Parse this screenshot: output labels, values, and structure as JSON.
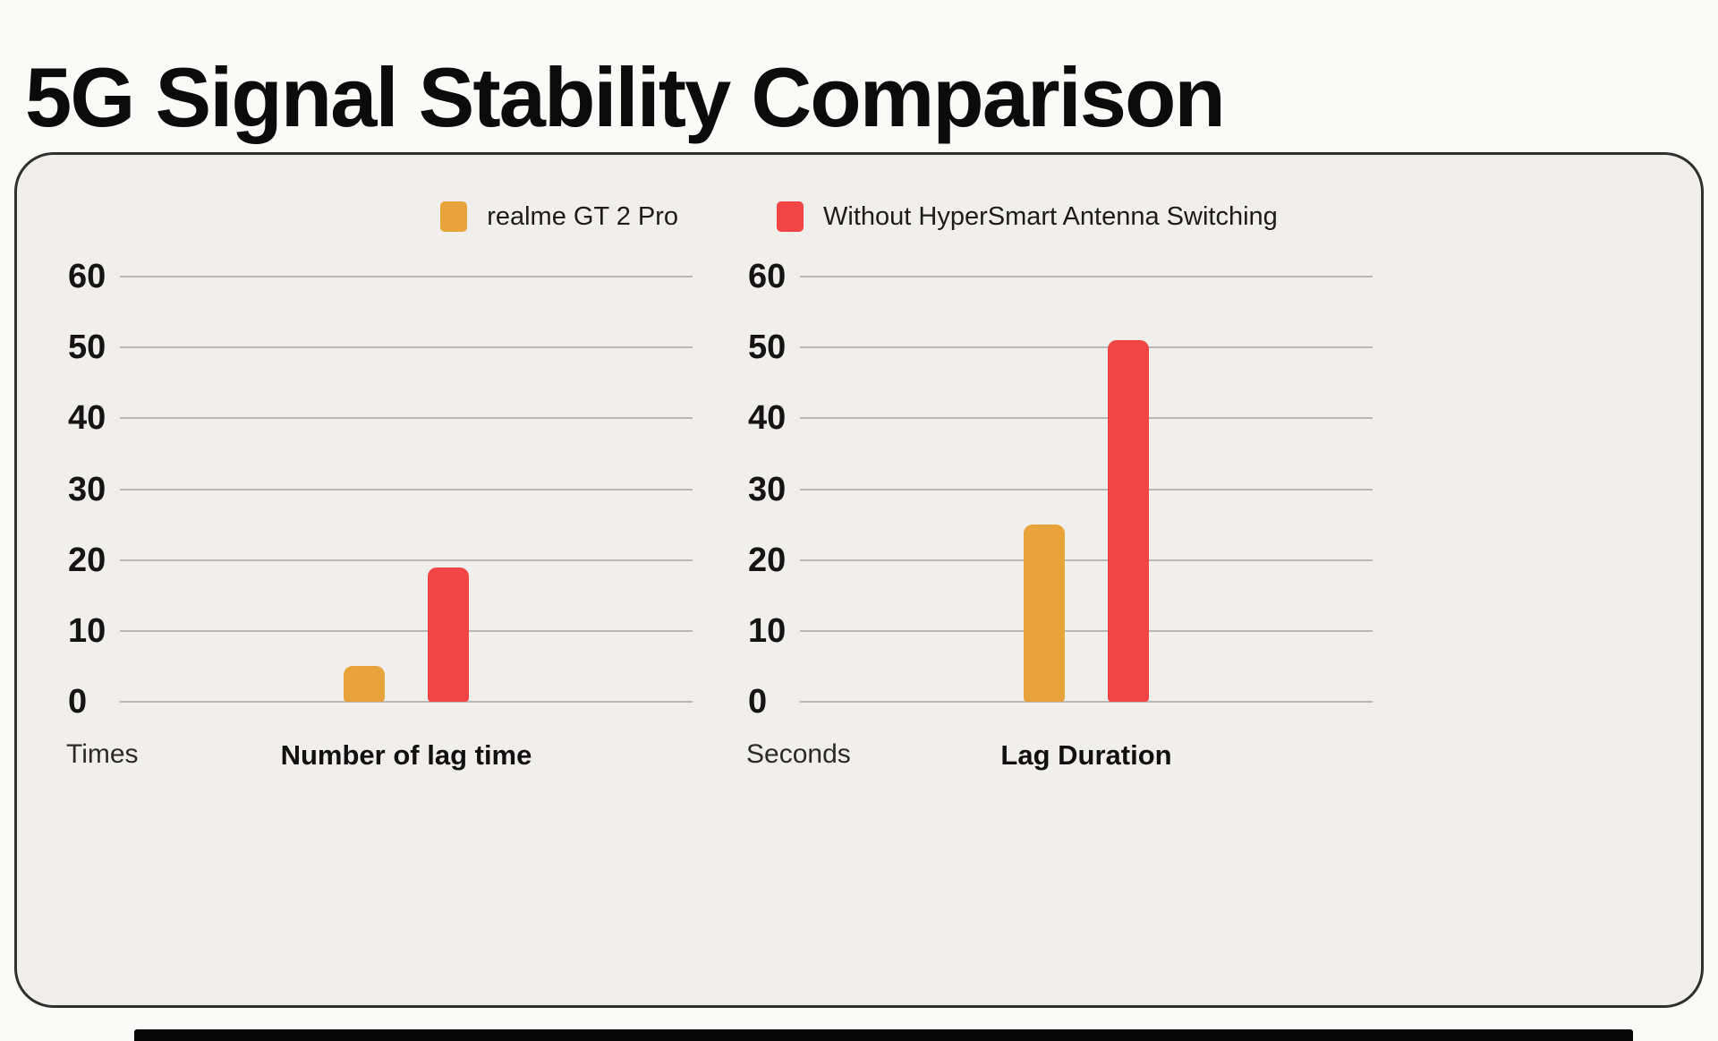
{
  "page": {
    "title": "5G Signal Stability Comparison"
  },
  "colors": {
    "realme_orange": "#E8A33B",
    "competitor_red": "#F14444",
    "card_background": "#F0EFEC",
    "card_border": "#2F2F2F",
    "gridline": "#B9B8B5",
    "text": "#141414"
  },
  "legend": [
    {
      "label": "realme GT 2 Pro",
      "color": "#E8A33B"
    },
    {
      "label": "Without HyperSmart Antenna Switching",
      "color": "#F14444"
    }
  ],
  "chart_data": [
    {
      "type": "bar",
      "title": "Number of lag time",
      "unit_label": "Times",
      "categories": [
        "realme GT 2 Pro",
        "Without HyperSmart Antenna Switching"
      ],
      "values": [
        5,
        19
      ],
      "ylim": [
        0,
        60
      ],
      "yticks": [
        0,
        10,
        20,
        30,
        40,
        50,
        60
      ],
      "grid": true,
      "legend_position": "top-center"
    },
    {
      "type": "bar",
      "title": "Lag Duration",
      "unit_label": "Seconds",
      "categories": [
        "realme GT 2 Pro",
        "Without HyperSmart Antenna Switching"
      ],
      "values": [
        25,
        51
      ],
      "ylim": [
        0,
        60
      ],
      "yticks": [
        0,
        10,
        20,
        30,
        40,
        50,
        60
      ],
      "grid": true,
      "legend_position": "top-center"
    }
  ]
}
